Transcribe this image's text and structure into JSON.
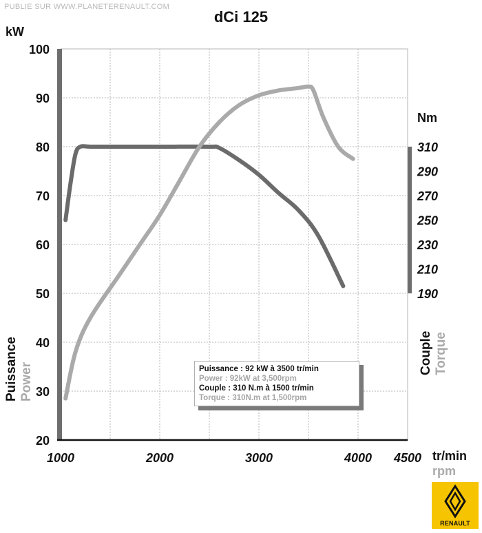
{
  "watermark": "PUBLIE SUR  WWW.PLANETERENAULT.COM",
  "title": "dCi 125",
  "colors": {
    "power": "#6b6b6b",
    "torque": "#aaaaaa",
    "axis": "#111111",
    "grid": "#b5b5b5",
    "logo_bg": "#f6c400"
  },
  "legend": {
    "power_fr": "Puissance : 92 kW à 3500 tr/min",
    "power_en": "Power : 92kW at 3,500rpm",
    "torque_fr": "Couple : 310 N.m à 1500 tr/min",
    "torque_en": "Torque : 310N.m at 1,500rpm"
  },
  "logo": {
    "name": "renault-logo",
    "text": "RENAULT"
  },
  "chart_data": {
    "type": "line",
    "title": "dCi 125",
    "x": {
      "label_fr": "tr/min",
      "label_en": "rpm",
      "min": 1000,
      "max": 4500,
      "ticks": [
        1000,
        2000,
        3000,
        4000,
        4500
      ],
      "tick_labels": [
        "1000",
        "2000",
        "3000",
        "4000",
        "4500"
      ],
      "grid_lines": [
        1000,
        1500,
        2000,
        2500,
        3000,
        3500,
        4000,
        4500
      ]
    },
    "y_left": {
      "unit": "kW",
      "label_fr": "Puissance",
      "label_en": "Power",
      "min": 20,
      "max": 100,
      "ticks": [
        20,
        30,
        40,
        50,
        60,
        70,
        80,
        90,
        100
      ]
    },
    "y_right": {
      "unit": "Nm",
      "label_fr": "Couple",
      "label_en": "Torque",
      "min": 190,
      "max": 310,
      "ticks": [
        190,
        210,
        230,
        250,
        270,
        290,
        310
      ]
    },
    "grid": true,
    "series": [
      {
        "name": "Couple / Torque",
        "axis": "right",
        "x": [
          1050,
          1100,
          1150,
          1200,
          1300,
          1500,
          2000,
          2500,
          2600,
          2800,
          3000,
          3200,
          3400,
          3600,
          3850
        ],
        "values": [
          250,
          280,
          304,
          310,
          310,
          310,
          310,
          310,
          309,
          299,
          287,
          272,
          258,
          237,
          196
        ]
      },
      {
        "name": "Puissance / Power",
        "axis": "left",
        "x": [
          1050,
          1150,
          1300,
          1600,
          1800,
          2000,
          2200,
          2400,
          2600,
          2800,
          3000,
          3200,
          3400,
          3500,
          3550,
          3650,
          3800,
          3950
        ],
        "values": [
          28.5,
          38,
          45,
          54,
          60,
          66,
          73,
          80,
          85,
          88.5,
          90.5,
          91.5,
          92,
          92.3,
          91.5,
          86,
          80,
          77.5
        ]
      }
    ]
  }
}
